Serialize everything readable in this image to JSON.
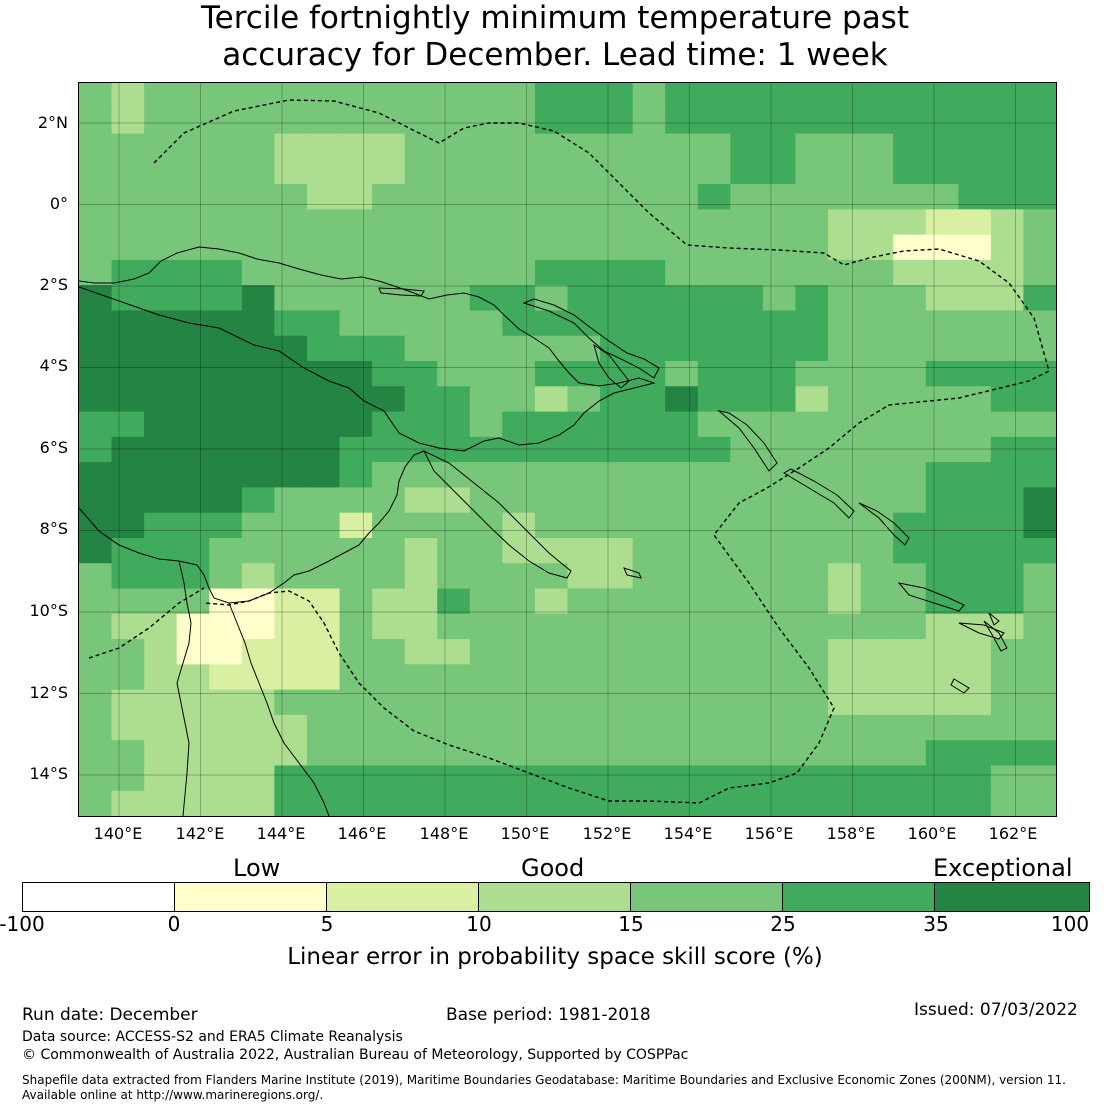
{
  "title": {
    "line1": "Tercile fortnightly minimum temperature past",
    "line2": "accuracy for December. Lead time: 1 week"
  },
  "map": {
    "lat_labels": [
      "2°N",
      "0°",
      "2°S",
      "4°S",
      "6°S",
      "8°S",
      "10°S",
      "12°S",
      "14°S"
    ],
    "lon_labels": [
      "140°E",
      "142°E",
      "144°E",
      "146°E",
      "148°E",
      "150°E",
      "152°E",
      "154°E",
      "156°E",
      "158°E",
      "160°E",
      "162°E"
    ],
    "colors": {
      "c1": "#ffffcc",
      "c2": "#d9f0a3",
      "c3": "#addd8e",
      "c4": "#78c679",
      "c5": "#41ab5d",
      "c6": "#238443"
    }
  },
  "legend": {
    "categories": [
      "Low",
      "Good",
      "Exceptional"
    ],
    "ticks": [
      "-100",
      "0",
      "5",
      "10",
      "15",
      "25",
      "35",
      "100"
    ],
    "label": "Linear error in probability space skill score (%)",
    "segments": [
      {
        "color": "#ffffff"
      },
      {
        "color": "#ffffcc"
      },
      {
        "color": "#d9f0a3"
      },
      {
        "color": "#addd8e"
      },
      {
        "color": "#78c679"
      },
      {
        "color": "#41ab5d"
      },
      {
        "color": "#238443"
      }
    ]
  },
  "footer": {
    "run_date": "Run date: December",
    "base_period": "Base period: 1981-2018",
    "issued": "Issued: 07/03/2022",
    "data_source": "Data source: ACCESS-S2 and ERA5 Climate Reanalysis",
    "copyright": "© Commonwealth of Australia 2022, Australian Bureau of Meteorology, Supported by COSPPac",
    "shapefile_line1": "Shapefile data extracted from Flanders Marine Institute (2019), Maritime Boundaries Geodatabase: Maritime Boundaries and Exclusive Economic Zones (200NM), version 11.",
    "shapefile_line2": "Available online at http://www.marineregions.org/."
  }
}
